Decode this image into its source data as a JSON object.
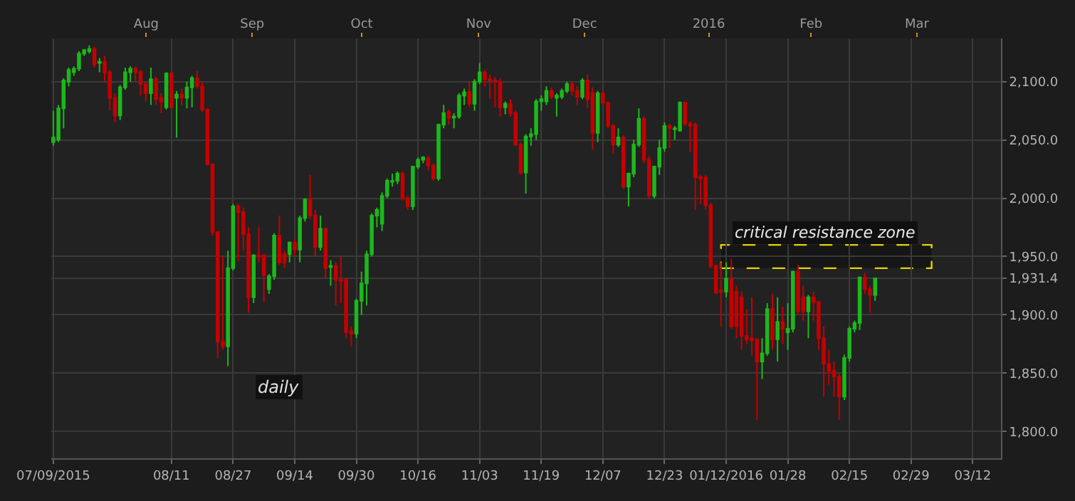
{
  "chart_data": {
    "type": "candlestick",
    "title": "daily",
    "categories": [
      "07/09/2015",
      null,
      null,
      null,
      null,
      null,
      null,
      null,
      null,
      null,
      null,
      null,
      null,
      null,
      null,
      null,
      null,
      null,
      null,
      null,
      null,
      null,
      null,
      "08/11",
      null,
      null,
      null,
      null,
      null,
      null,
      null,
      null,
      null,
      null,
      null,
      "08/27",
      null,
      null,
      null,
      null,
      null,
      null,
      null,
      null,
      null,
      null,
      null,
      "09/14",
      null,
      null,
      null,
      null,
      null,
      null,
      null,
      null,
      null,
      null,
      null,
      "09/30",
      null,
      null,
      null,
      null,
      null,
      null,
      null,
      null,
      null,
      null,
      null,
      "10/16",
      null,
      null,
      null,
      null,
      null,
      null,
      null,
      null,
      null,
      null,
      null,
      "11/03",
      null,
      null,
      null,
      null,
      null,
      null,
      null,
      null,
      null,
      null,
      null,
      "11/19",
      null,
      null,
      null,
      null,
      null,
      null,
      null,
      null,
      null,
      null,
      null,
      "12/07",
      null,
      null,
      null,
      null,
      null,
      null,
      null,
      null,
      null,
      null,
      null,
      "12/23",
      null,
      null,
      null,
      null,
      null,
      null,
      null,
      null,
      null,
      null,
      null,
      "01/12/2016",
      null,
      null,
      null,
      null,
      null,
      null,
      null,
      null,
      null,
      null,
      null,
      "01/28",
      null,
      null,
      null,
      null,
      null,
      null,
      null,
      null,
      null,
      null,
      null,
      "02/15",
      null,
      null,
      null,
      null,
      null,
      null,
      null,
      null,
      null,
      null,
      null,
      "02/29",
      null,
      null,
      null,
      null,
      null,
      null,
      null,
      null,
      null,
      null,
      null,
      "03/12",
      null,
      null,
      null,
      null,
      null
    ],
    "ohlc": [
      [
        2048,
        2075,
        2045,
        2052
      ],
      [
        2050,
        2080,
        2048,
        2077
      ],
      [
        2077,
        2103,
        2060,
        2101
      ],
      [
        2100,
        2112,
        2096,
        2110
      ],
      [
        2108,
        2113,
        2105,
        2111
      ],
      [
        2111,
        2126,
        2109,
        2124
      ],
      [
        2124,
        2128,
        2122,
        2127
      ],
      [
        2126,
        2131,
        2124,
        2128
      ],
      [
        2128,
        2130,
        2112,
        2115
      ],
      [
        2116,
        2120,
        2108,
        2117
      ],
      [
        2117,
        2122,
        2100,
        2108
      ],
      [
        2108,
        2110,
        2075,
        2086
      ],
      [
        2086,
        2090,
        2065,
        2071
      ],
      [
        2071,
        2097,
        2067,
        2095
      ],
      [
        2095,
        2112,
        2093,
        2108
      ],
      [
        2108,
        2113,
        2100,
        2111
      ],
      [
        2111,
        2113,
        2100,
        2108
      ],
      [
        2108,
        2110,
        2088,
        2098
      ],
      [
        2098,
        2100,
        2083,
        2090
      ],
      [
        2090,
        2112,
        2080,
        2102
      ],
      [
        2102,
        2104,
        2080,
        2085
      ],
      [
        2086,
        2090,
        2073,
        2083
      ],
      [
        2078,
        2108,
        2076,
        2107
      ],
      [
        2107,
        2108,
        2077,
        2078
      ],
      [
        2086,
        2092,
        2052,
        2089
      ],
      [
        2089,
        2094,
        2080,
        2086
      ],
      [
        2086,
        2100,
        2077,
        2095
      ],
      [
        2095,
        2105,
        2078,
        2103
      ],
      [
        2103,
        2109,
        2094,
        2096
      ],
      [
        2096,
        2100,
        2074,
        2076
      ],
      [
        2076,
        2077,
        2028,
        2029
      ],
      [
        2029,
        2030,
        1968,
        1971
      ],
      [
        1971,
        1972,
        1863,
        1877
      ],
      [
        1877,
        1950,
        1870,
        1873
      ],
      [
        1873,
        1955,
        1856,
        1940
      ],
      [
        1940,
        1995,
        1938,
        1993
      ],
      [
        1993,
        1995,
        1946,
        1988
      ],
      [
        1988,
        1992,
        1955,
        1969
      ],
      [
        1969,
        1975,
        1902,
        1915
      ],
      [
        1915,
        1952,
        1910,
        1951
      ],
      [
        1951,
        1975,
        1945,
        1950
      ],
      [
        1951,
        1952,
        1911,
        1934
      ],
      [
        1922,
        1935,
        1918,
        1933
      ],
      [
        1933,
        1970,
        1930,
        1968
      ],
      [
        1968,
        1985,
        1943,
        1945
      ],
      [
        1952,
        1955,
        1940,
        1945
      ],
      [
        1952,
        1963,
        1945,
        1962
      ],
      [
        1962,
        1965,
        1950,
        1956
      ],
      [
        1956,
        1985,
        1945,
        1983
      ],
      [
        1983,
        2000,
        1980,
        1999
      ],
      [
        1999,
        2020,
        1982,
        1985
      ],
      [
        1985,
        1990,
        1950,
        1958
      ],
      [
        1958,
        1985,
        1955,
        1974
      ],
      [
        1974,
        1975,
        1932,
        1940
      ],
      [
        1941,
        1947,
        1925,
        1942
      ],
      [
        1942,
        1945,
        1908,
        1930
      ],
      [
        1930,
        1950,
        1910,
        1929
      ],
      [
        1930,
        1932,
        1880,
        1885
      ],
      [
        1886,
        1890,
        1873,
        1884
      ],
      [
        1884,
        1914,
        1880,
        1912
      ],
      [
        1912,
        1937,
        1900,
        1927
      ],
      [
        1927,
        1955,
        1908,
        1952
      ],
      [
        1952,
        1987,
        1950,
        1985
      ],
      [
        1985,
        1992,
        1975,
        1990
      ],
      [
        1978,
        2005,
        1972,
        2002
      ],
      [
        2002,
        2017,
        2000,
        2015
      ],
      [
        2014,
        2021,
        2010,
        2015
      ],
      [
        2015,
        2023,
        2012,
        2021
      ],
      [
        2021,
        2023,
        1998,
        2000
      ],
      [
        2000,
        2002,
        1990,
        1993
      ],
      [
        1993,
        2028,
        1990,
        2027
      ],
      [
        2027,
        2035,
        2025,
        2033
      ],
      [
        2033,
        2036,
        2030,
        2035
      ],
      [
        2034,
        2036,
        2024,
        2028
      ],
      [
        2028,
        2030,
        2015,
        2017
      ],
      [
        2017,
        2064,
        2015,
        2063
      ],
      [
        2063,
        2080,
        2060,
        2073
      ],
      [
        2074,
        2076,
        2063,
        2069
      ],
      [
        2069,
        2073,
        2060,
        2070
      ],
      [
        2070,
        2090,
        2068,
        2088
      ],
      [
        2088,
        2094,
        2080,
        2091
      ],
      [
        2091,
        2100,
        2078,
        2081
      ],
      [
        2081,
        2102,
        2075,
        2100
      ],
      [
        2100,
        2116,
        2098,
        2108
      ],
      [
        2108,
        2110,
        2096,
        2102
      ],
      [
        2102,
        2106,
        2085,
        2101
      ],
      [
        2101,
        2104,
        2078,
        2100
      ],
      [
        2100,
        2103,
        2070,
        2078
      ],
      [
        2078,
        2083,
        2072,
        2081
      ],
      [
        2081,
        2085,
        2070,
        2073
      ],
      [
        2073,
        2075,
        2045,
        2046
      ],
      [
        2046,
        2048,
        2020,
        2022
      ],
      [
        2022,
        2055,
        2004,
        2053
      ],
      [
        2053,
        2060,
        2045,
        2055
      ],
      [
        2055,
        2085,
        2050,
        2083
      ],
      [
        2083,
        2088,
        2075,
        2085
      ],
      [
        2083,
        2096,
        2080,
        2092
      ],
      [
        2092,
        2095,
        2085,
        2087
      ],
      [
        2086,
        2090,
        2070,
        2088
      ],
      [
        2087,
        2094,
        2085,
        2092
      ],
      [
        2092,
        2100,
        2090,
        2098
      ],
      [
        2098,
        2100,
        2088,
        2092
      ],
      [
        2092,
        2096,
        2080,
        2087
      ],
      [
        2087,
        2103,
        2085,
        2101
      ],
      [
        2101,
        2106,
        2077,
        2085
      ],
      [
        2090,
        2095,
        2042,
        2056
      ],
      [
        2056,
        2092,
        2048,
        2090
      ],
      [
        2090,
        2092,
        2080,
        2082
      ],
      [
        2082,
        2083,
        2060,
        2062
      ],
      [
        2062,
        2064,
        2038,
        2046
      ],
      [
        2046,
        2060,
        2044,
        2052
      ],
      [
        2052,
        2054,
        2008,
        2010
      ],
      [
        2010,
        2022,
        1993,
        2021
      ],
      [
        2021,
        2050,
        2018,
        2046
      ],
      [
        2046,
        2077,
        2044,
        2068
      ],
      [
        2068,
        2070,
        2030,
        2033
      ],
      [
        2033,
        2036,
        2000,
        2002
      ],
      [
        2002,
        2028,
        2000,
        2027
      ],
      [
        2027,
        2050,
        2020,
        2043
      ],
      [
        2043,
        2065,
        2040,
        2062
      ],
      [
        2062,
        2064,
        2043,
        2060
      ],
      [
        2059,
        2062,
        2050,
        2060
      ],
      [
        2058,
        2083,
        2057,
        2082
      ],
      [
        2082,
        2083,
        2062,
        2064
      ],
      [
        2064,
        2066,
        2040,
        2062
      ],
      [
        2063,
        2065,
        1990,
        2018
      ],
      [
        2018,
        2020,
        1995,
        2017
      ],
      [
        2018,
        2020,
        1990,
        1994
      ],
      [
        1994,
        1996,
        1940,
        1942
      ],
      [
        1942,
        1943,
        1918,
        1919
      ],
      [
        1921,
        1945,
        1890,
        1920
      ],
      [
        1920,
        1945,
        1915,
        1931
      ],
      [
        1931,
        1948,
        1888,
        1890
      ],
      [
        1920,
        1925,
        1880,
        1890
      ],
      [
        1915,
        1920,
        1870,
        1882
      ],
      [
        1882,
        1905,
        1875,
        1879
      ],
      [
        1880,
        1915,
        1865,
        1878
      ],
      [
        1879,
        1880,
        1810,
        1860
      ],
      [
        1860,
        1880,
        1845,
        1867
      ],
      [
        1867,
        1910,
        1865,
        1905
      ],
      [
        1905,
        1918,
        1870,
        1879
      ],
      [
        1879,
        1915,
        1860,
        1894
      ],
      [
        1894,
        1907,
        1875,
        1888
      ],
      [
        1885,
        1910,
        1870,
        1888
      ],
      [
        1888,
        1938,
        1885,
        1937
      ],
      [
        1937,
        1943,
        1900,
        1903
      ],
      [
        1915,
        1925,
        1895,
        1903
      ],
      [
        1903,
        1917,
        1880,
        1915
      ],
      [
        1915,
        1920,
        1895,
        1911
      ],
      [
        1911,
        1912,
        1870,
        1880
      ],
      [
        1880,
        1890,
        1830,
        1858
      ],
      [
        1858,
        1870,
        1840,
        1852
      ],
      [
        1852,
        1860,
        1830,
        1847
      ],
      [
        1847,
        1850,
        1810,
        1830
      ],
      [
        1830,
        1866,
        1827,
        1863
      ],
      [
        1863,
        1890,
        1860,
        1888
      ],
      [
        1888,
        1895,
        1885,
        1893
      ],
      [
        1893,
        1933,
        1887,
        1932
      ],
      [
        1932,
        1936,
        1918,
        1922
      ],
      [
        1922,
        1925,
        1902,
        1917
      ],
      [
        1917,
        1932,
        1912,
        1931.4
      ],
      null,
      null,
      null,
      null,
      null,
      null,
      null,
      null,
      null,
      null,
      null,
      null,
      null,
      null,
      null,
      null,
      null,
      null,
      null,
      null,
      null,
      null,
      null,
      null
    ],
    "ylim": [
      1777,
      2137
    ],
    "yticks": [
      {
        "value": 1800,
        "label": "1,800.0"
      },
      {
        "value": 1850,
        "label": "1,850.0"
      },
      {
        "value": 1900,
        "label": "1,900.0"
      },
      {
        "value": 1950,
        "label": "1,950.0"
      },
      {
        "value": 2000,
        "label": "2,000.0"
      },
      {
        "value": 2050,
        "label": "2,050.0"
      },
      {
        "value": 2100,
        "label": "2,100.0"
      },
      {
        "value": 1931.4,
        "label": "1,931.4"
      }
    ],
    "x2lim": [
      "2015-07-08",
      "2016-03-24"
    ],
    "x2ticks": [
      {
        "value": "2015-08-03",
        "label": "Aug"
      },
      {
        "value": "2015-09-01",
        "label": "Sep"
      },
      {
        "value": "2015-10-01",
        "label": "Oct"
      },
      {
        "value": "2015-11-02",
        "label": "Nov"
      },
      {
        "value": "2015-12-01",
        "label": "Dec"
      },
      {
        "value": "2016-01-04",
        "label": "2016"
      },
      {
        "value": "2016-02-01",
        "label": "Feb"
      },
      {
        "value": "2016-03-01",
        "label": "Mar"
      }
    ],
    "bands": [
      {
        "axis": "y",
        "from": 1940,
        "to": 1960,
        "label": "critical resistance zone",
        "color": "#e6d200"
      }
    ],
    "grid": true
  }
}
